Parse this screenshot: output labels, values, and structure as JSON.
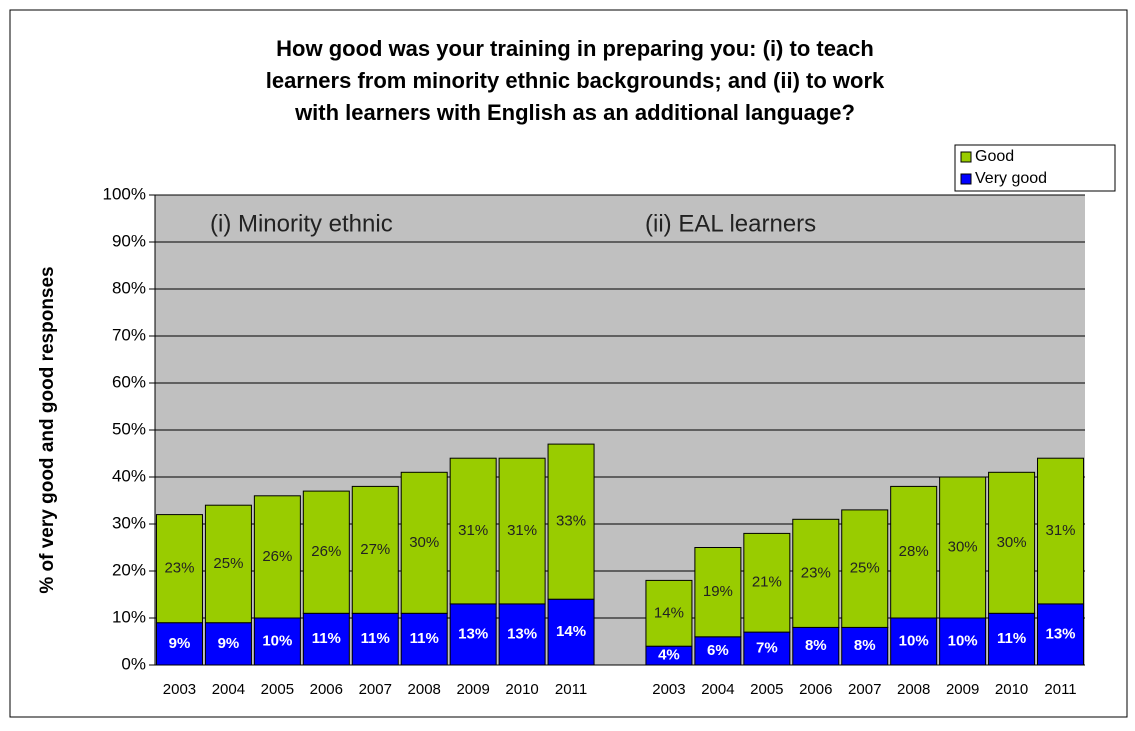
{
  "chart_data": {
    "type": "stacked_bar",
    "title": [
      "How good was your training in preparing you: (i) to teach",
      "learners from minority ethnic backgrounds; and (ii) to work",
      "with learners with English as an additional language?"
    ],
    "y_label": "% of very good and good responses",
    "annotations": [
      "(i) Minority ethnic",
      "(ii) EAL learners"
    ],
    "categories": [
      "2003",
      "2004",
      "2005",
      "2006",
      "2007",
      "2008",
      "2009",
      "2010",
      "2011",
      null,
      "2003",
      "2004",
      "2005",
      "2006",
      "2007",
      "2008",
      "2009",
      "2010",
      "2011"
    ],
    "series": [
      {
        "name": "Very good",
        "color": "#0000ff",
        "values": [
          9,
          9,
          10,
          11,
          11,
          11,
          13,
          13,
          14,
          null,
          4,
          6,
          7,
          8,
          8,
          10,
          10,
          11,
          13
        ],
        "value_labels": [
          "9%",
          "9%",
          "10%",
          "11%",
          "11%",
          "11%",
          "13%",
          "13%",
          "14%",
          null,
          "4%",
          "6%",
          "7%",
          "8%",
          "8%",
          "10%",
          "10%",
          "11%",
          "13%"
        ]
      },
      {
        "name": "Good",
        "color": "#99cc00",
        "values": [
          23,
          25,
          26,
          26,
          27,
          30,
          31,
          31,
          33,
          null,
          14,
          19,
          21,
          23,
          25,
          28,
          30,
          30,
          31
        ],
        "value_labels": [
          "23%",
          "25%",
          "26%",
          "26%",
          "27%",
          "30%",
          "31%",
          "31%",
          "33%",
          null,
          "14%",
          "19%",
          "21%",
          "23%",
          "25%",
          "28%",
          "30%",
          "30%",
          "31%"
        ]
      }
    ],
    "ylim": [
      0,
      100
    ],
    "yticks": [
      {
        "value": 0,
        "label": "0%"
      },
      {
        "value": 10,
        "label": "10%"
      },
      {
        "value": 20,
        "label": "20%"
      },
      {
        "value": 30,
        "label": "30%"
      },
      {
        "value": 40,
        "label": "40%"
      },
      {
        "value": 50,
        "label": "50%"
      },
      {
        "value": 60,
        "label": "60%"
      },
      {
        "value": 70,
        "label": "70%"
      },
      {
        "value": 80,
        "label": "80%"
      },
      {
        "value": 90,
        "label": "90%"
      },
      {
        "value": 100,
        "label": "100%"
      }
    ],
    "grid": true,
    "legend": "upper right",
    "plot_background": "#c0c0c0"
  }
}
